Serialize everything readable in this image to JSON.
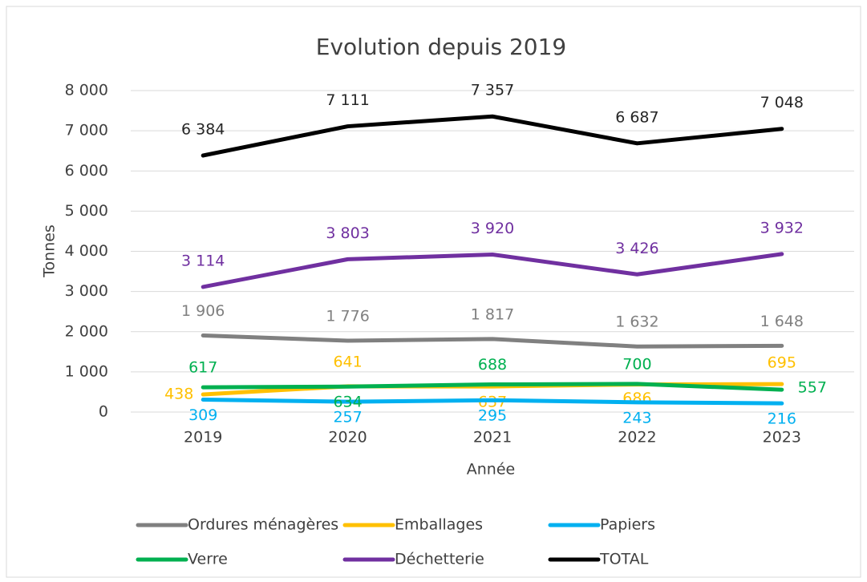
{
  "chart_data": {
    "type": "line",
    "title": "Evolution depuis 2019",
    "x_label": "Année",
    "y_label": "Tonnes",
    "categories": [
      "2019",
      "2020",
      "2021",
      "2022",
      "2023"
    ],
    "ylim": [
      0,
      8000
    ],
    "yticks": [
      0,
      {
        "value": 1000,
        "label": "1 000"
      },
      {
        "value": 2000,
        "label": "2 000"
      },
      {
        "value": 3000,
        "label": "3 000"
      },
      {
        "value": 4000,
        "label": "4 000"
      },
      {
        "value": 5000,
        "label": "5 000"
      },
      {
        "value": 6000,
        "label": "6 000"
      },
      {
        "value": 7000,
        "label": "7 000"
      },
      {
        "value": 8000,
        "label": "8 000"
      }
    ],
    "grid": true,
    "legend": "bottom",
    "series": [
      {
        "name": "Ordures ménagères",
        "color": "#808080",
        "values": [
          1906,
          1776,
          1817,
          1632,
          1648
        ],
        "value_labels": [
          "1 906",
          "1 776",
          "1 817",
          "1 632",
          "1 648"
        ]
      },
      {
        "name": "Emballages",
        "color": "#ffc000",
        "values": [
          438,
          641,
          637,
          686,
          695
        ]
      },
      {
        "name": "Papiers",
        "color": "#00b0f0",
        "values": [
          309,
          257,
          295,
          243,
          216
        ]
      },
      {
        "name": "Verre",
        "color": "#00b050",
        "values": [
          617,
          634,
          688,
          700,
          557
        ]
      },
      {
        "name": "Déchetterie",
        "color": "#7030a0",
        "values": [
          3114,
          3803,
          3920,
          3426,
          3932
        ],
        "value_labels": [
          "3 114",
          "3 803",
          "3 920",
          "3 426",
          "3 932"
        ]
      },
      {
        "name": "TOTAL",
        "color": "#000000",
        "values": [
          6384,
          7111,
          7357,
          6687,
          7048
        ],
        "value_labels": [
          "6 384",
          "7 111",
          "7 357",
          "6 687",
          "7 048"
        ]
      }
    ]
  }
}
